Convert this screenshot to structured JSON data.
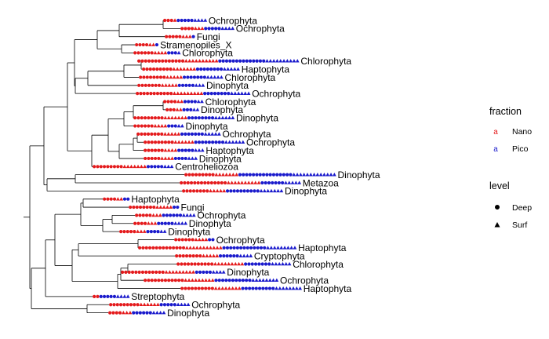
{
  "chart_data": {
    "type": "phylogenetic-tree-with-point-bars",
    "title": "",
    "colors": {
      "Nano": "#e41a1c",
      "Pico": "#1a1acc",
      "branch": "#000000"
    },
    "tips": [
      {
        "label": "Ochrophyta",
        "nano": 4,
        "pico": 9
      },
      {
        "label": "Ochrophyta",
        "nano": 7,
        "pico": 9
      },
      {
        "label": "Fungi",
        "nano": 8,
        "pico": 1
      },
      {
        "label": "Stramenopiles_X",
        "nano": 6,
        "pico": 1
      },
      {
        "label": "Chlorophyta",
        "nano": 10,
        "pico": 4
      },
      {
        "label": "Chlorophyta",
        "nano": 24,
        "pico": 24
      },
      {
        "label": "Haptophyta",
        "nano": 16,
        "pico": 13
      },
      {
        "label": "Chlorophyta",
        "nano": 13,
        "pico": 12
      },
      {
        "label": "Dinophyta",
        "nano": 12,
        "pico": 8
      },
      {
        "label": "Ochrophyta",
        "nano": 20,
        "pico": 14
      },
      {
        "label": "Chlorophyta",
        "nano": 6,
        "pico": 6
      },
      {
        "label": "Dinophyta",
        "nano": 5,
        "pico": 5
      },
      {
        "label": "Dinophyta",
        "nano": 16,
        "pico": 14
      },
      {
        "label": "Dinophyta",
        "nano": 10,
        "pico": 5
      },
      {
        "label": "Ochrophyta",
        "nano": 13,
        "pico": 12
      },
      {
        "label": "Ochrophyta",
        "nano": 15,
        "pico": 15
      },
      {
        "label": "Haptophyta",
        "nano": 10,
        "pico": 8
      },
      {
        "label": "Dinophyta",
        "nano": 9,
        "pico": 7
      },
      {
        "label": "Centroheliozoa",
        "nano": 16,
        "pico": 8
      },
      {
        "label": "Dinophyta",
        "nano": 16,
        "pico": 29
      },
      {
        "label": "Metazoa",
        "nano": 24,
        "pico": 12
      },
      {
        "label": "Dinophyta",
        "nano": 13,
        "pico": 17
      },
      {
        "label": "Haptophyta",
        "nano": 6,
        "pico": 2
      },
      {
        "label": "Fungi",
        "nano": 13,
        "pico": 2
      },
      {
        "label": "Ochrophyta",
        "nano": 8,
        "pico": 10
      },
      {
        "label": "Dinophyta",
        "nano": 7,
        "pico": 9
      },
      {
        "label": "Dinophyta",
        "nano": 8,
        "pico": 6
      },
      {
        "label": "Ochrophyta",
        "nano": 10,
        "pico": 2
      },
      {
        "label": "Haptophyta",
        "nano": 25,
        "pico": 22
      },
      {
        "label": "Cryptophyta",
        "nano": 13,
        "pico": 10
      },
      {
        "label": "Chlorophyta",
        "nano": 20,
        "pico": 14
      },
      {
        "label": "Dinophyta",
        "nano": 22,
        "pico": 9
      },
      {
        "label": "Ochrophyta",
        "nano": 21,
        "pico": 19
      },
      {
        "label": "Haptophyta",
        "nano": 18,
        "pico": 18
      },
      {
        "label": "Streptophyta",
        "nano": 2,
        "pico": 9
      },
      {
        "label": "Ochrophyta",
        "nano": 15,
        "pico": 9
      },
      {
        "label": "Dinophyta",
        "nano": 7,
        "pico": 10
      }
    ],
    "legend": {
      "position": "right",
      "fraction": {
        "title": "fraction",
        "items": [
          "Nano",
          "Pico"
        ]
      },
      "level": {
        "title": "level",
        "items": [
          "Deep",
          "Surf"
        ]
      }
    }
  }
}
